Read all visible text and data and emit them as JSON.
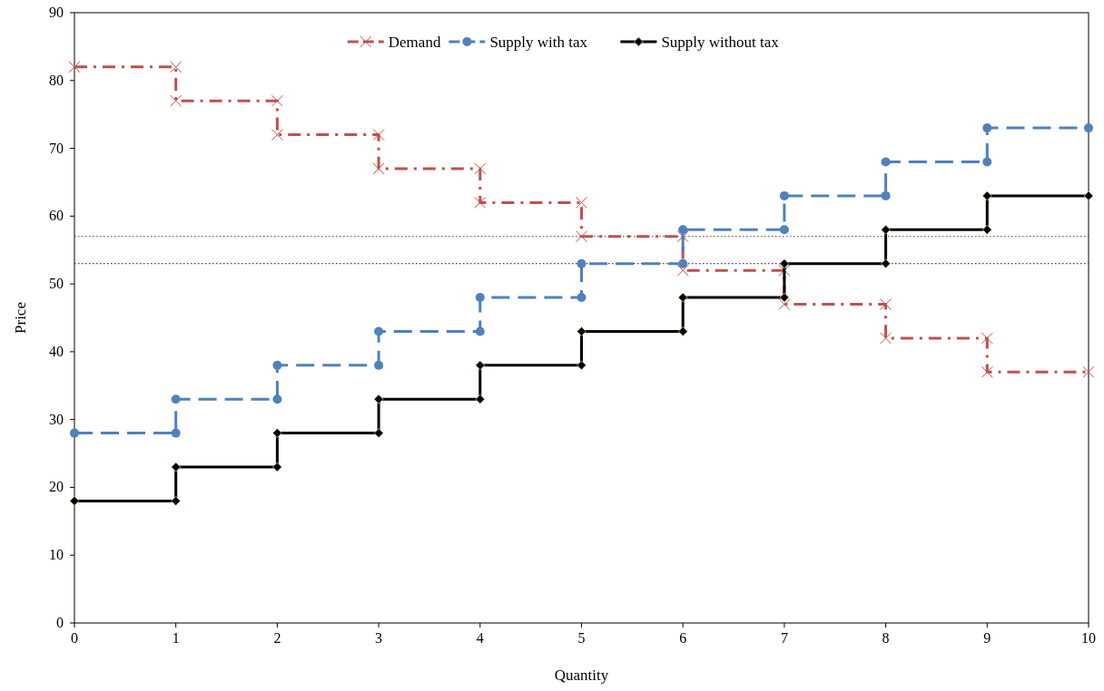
{
  "chart_data": {
    "type": "line",
    "xlabel": "Quantity",
    "ylabel": "Price",
    "xlim": [
      0,
      10
    ],
    "ylim": [
      0,
      90
    ],
    "xticks": [
      0,
      1,
      2,
      3,
      4,
      5,
      6,
      7,
      8,
      9,
      10
    ],
    "yticks": [
      0,
      10,
      20,
      30,
      40,
      50,
      60,
      70,
      80,
      90
    ],
    "legend": "top",
    "grid": false,
    "series": [
      {
        "name": "Demand",
        "color": "#c0504d",
        "marker": "cross",
        "line_style": "dashed",
        "x": [
          0,
          1,
          1,
          2,
          2,
          3,
          3,
          4,
          4,
          5,
          5,
          6,
          6,
          7,
          7,
          8,
          8,
          9,
          9,
          10
        ],
        "values": [
          82,
          82,
          77,
          77,
          72,
          72,
          67,
          67,
          62,
          62,
          57,
          57,
          52,
          52,
          47,
          47,
          42,
          42,
          37,
          37
        ]
      },
      {
        "name": "Supply with tax",
        "color": "#4f81bd",
        "marker": "circle",
        "line_style": "dashed",
        "x": [
          0,
          1,
          1,
          2,
          2,
          3,
          3,
          4,
          4,
          5,
          5,
          6,
          6,
          7,
          7,
          8,
          8,
          9,
          9,
          10
        ],
        "values": [
          28,
          28,
          33,
          33,
          38,
          38,
          43,
          43,
          48,
          48,
          53,
          53,
          58,
          58,
          63,
          63,
          68,
          68,
          73,
          73
        ]
      },
      {
        "name": "Supply without tax",
        "color": "#000000",
        "marker": "diamond",
        "line_style": "solid",
        "x": [
          0,
          1,
          1,
          2,
          2,
          3,
          3,
          4,
          4,
          5,
          5,
          6,
          6,
          7,
          7,
          8,
          8,
          9,
          9,
          10
        ],
        "values": [
          18,
          18,
          23,
          23,
          28,
          28,
          33,
          33,
          38,
          38,
          43,
          43,
          48,
          48,
          53,
          53,
          58,
          58,
          63,
          63
        ]
      }
    ],
    "ref_lines": [
      {
        "axis": "y",
        "value": 57,
        "color": "#404040",
        "line_style": "dotted"
      },
      {
        "axis": "y",
        "value": 53,
        "color": "#404040",
        "line_style": "dotted"
      }
    ]
  }
}
